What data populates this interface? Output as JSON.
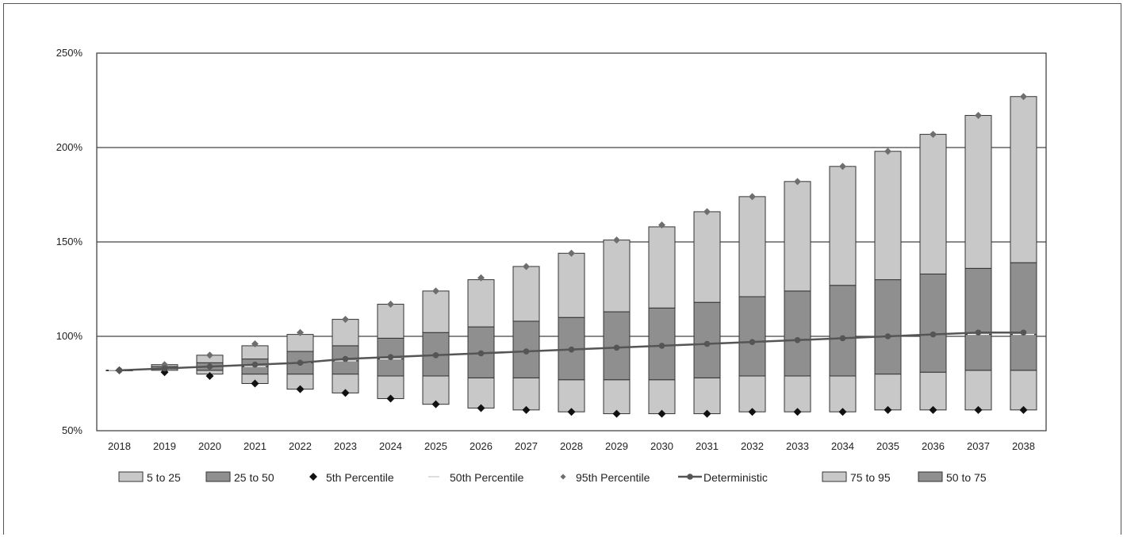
{
  "chart_data": {
    "type": "bar",
    "title": "",
    "xlabel": "",
    "ylabel": "",
    "ylim": [
      50,
      250
    ],
    "y_ticks": [
      "50%",
      "100%",
      "150%",
      "200%",
      "250%"
    ],
    "grid": "horizontal",
    "legend_position": "bottom",
    "colors": {
      "band_5_25": "#c8c8c8",
      "band_25_50": "#8f8f8f",
      "band_50_75": "#8f8f8f",
      "band_75_95": "#c8c8c8",
      "p5": "#111111",
      "p95": "#6e6e6e",
      "deterministic": "#555555",
      "median": "#ffffff"
    },
    "categories": [
      "2018",
      "2019",
      "2020",
      "2021",
      "2022",
      "2023",
      "2024",
      "2025",
      "2026",
      "2027",
      "2028",
      "2029",
      "2030",
      "2031",
      "2032",
      "2033",
      "2034",
      "2035",
      "2036",
      "2037",
      "2038"
    ],
    "series": [
      {
        "name": "5th Percentile",
        "values": [
          82,
          81,
          79,
          75,
          72,
          70,
          67,
          64,
          62,
          61,
          60,
          59,
          59,
          59,
          60,
          60,
          60,
          61,
          61,
          61,
          61
        ]
      },
      {
        "name": "5 to 25",
        "values": [
          82,
          82,
          80,
          75,
          72,
          70,
          67,
          64,
          62,
          61,
          60,
          59,
          59,
          59,
          60,
          60,
          60,
          61,
          61,
          61,
          61
        ]
      },
      {
        "name": "25 to 50",
        "values": [
          82,
          83,
          82,
          80,
          80,
          80,
          79,
          79,
          78,
          78,
          77,
          77,
          77,
          78,
          79,
          79,
          79,
          80,
          81,
          82,
          82
        ]
      },
      {
        "name": "50th Percentile",
        "values": [
          82,
          83,
          84,
          84,
          86,
          87,
          88,
          90,
          91,
          92,
          93,
          94,
          95,
          96,
          97,
          98,
          99,
          100,
          101,
          101,
          101
        ]
      },
      {
        "name": "50 to 75",
        "values": [
          82,
          84,
          86,
          88,
          92,
          95,
          99,
          102,
          105,
          108,
          110,
          113,
          115,
          118,
          121,
          124,
          127,
          130,
          133,
          136,
          139
        ]
      },
      {
        "name": "75 to 95",
        "values": [
          82,
          85,
          90,
          95,
          101,
          109,
          117,
          124,
          130,
          137,
          144,
          151,
          158,
          166,
          174,
          182,
          190,
          198,
          207,
          217,
          227
        ]
      },
      {
        "name": "95th Percentile",
        "values": [
          82,
          85,
          90,
          96,
          102,
          109,
          117,
          124,
          131,
          137,
          144,
          151,
          159,
          166,
          174,
          182,
          190,
          198,
          207,
          217,
          227
        ]
      },
      {
        "name": "Deterministic",
        "values": [
          82,
          83,
          84,
          85,
          86,
          88,
          89,
          90,
          91,
          92,
          93,
          94,
          95,
          96,
          97,
          98,
          99,
          100,
          101,
          102,
          102
        ]
      }
    ],
    "legend": [
      "5 to 25",
      "25 to 50",
      "5th Percentile",
      "50th Percentile",
      "95th Percentile",
      "Deterministic",
      "75 to 95",
      "50 to 75"
    ]
  }
}
